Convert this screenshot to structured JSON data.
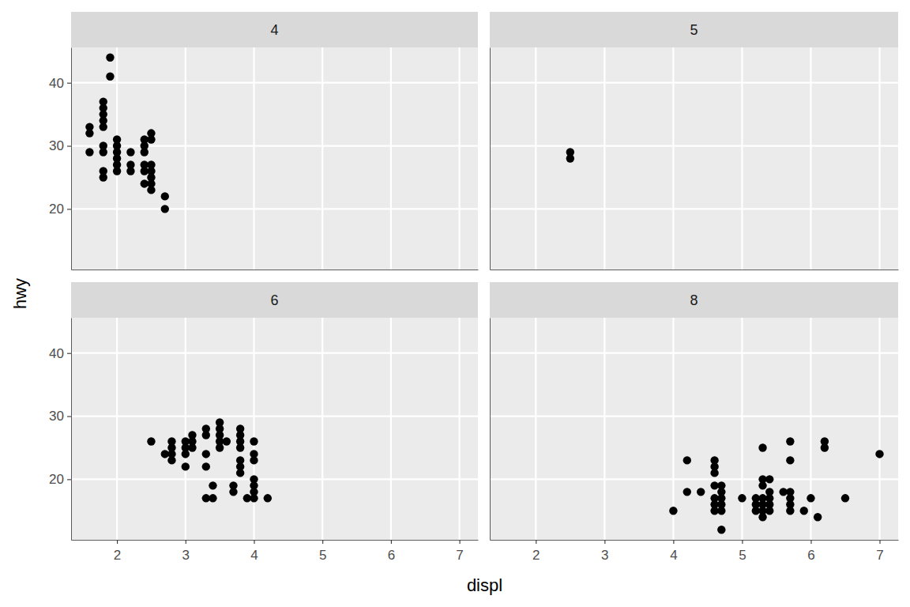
{
  "chart_data": {
    "type": "scatter",
    "x_label": "displ",
    "y_label": "hwy",
    "xlim": [
      1.33,
      7.27
    ],
    "ylim": [
      10.4,
      45.6
    ],
    "xticks": [
      2,
      3,
      4,
      5,
      6,
      7
    ],
    "yticks": [
      20,
      30,
      40
    ],
    "grid": true,
    "color": "#000000",
    "marker": "circle",
    "series": [
      {
        "name": "4",
        "x": [
          1.6,
          1.6,
          1.6,
          1.8,
          1.8,
          1.8,
          1.8,
          1.8,
          1.8,
          1.8,
          1.8,
          1.8,
          1.9,
          1.9,
          2.0,
          2.0,
          2.0,
          2.0,
          2.0,
          2.0,
          2.2,
          2.2,
          2.2,
          2.4,
          2.4,
          2.4,
          2.4,
          2.4,
          2.4,
          2.5,
          2.5,
          2.5,
          2.5,
          2.5,
          2.5,
          2.5,
          2.7,
          2.7
        ],
        "values": [
          33,
          32,
          29,
          37,
          36,
          35,
          34,
          33,
          30,
          29,
          26,
          25,
          44,
          41,
          31,
          30,
          29,
          28,
          27,
          26,
          29,
          27,
          26,
          31,
          30,
          29,
          27,
          26,
          24,
          32,
          31,
          27,
          26,
          25,
          24,
          23,
          22,
          20
        ]
      },
      {
        "name": "5",
        "x": [
          2.5,
          2.5
        ],
        "values": [
          29,
          28
        ]
      },
      {
        "name": "6",
        "x": [
          2.5,
          2.7,
          2.8,
          2.8,
          2.8,
          2.8,
          3.0,
          3.0,
          3.0,
          3.0,
          3.1,
          3.1,
          3.1,
          3.3,
          3.3,
          3.3,
          3.3,
          3.3,
          3.4,
          3.4,
          3.5,
          3.5,
          3.5,
          3.5,
          3.5,
          3.6,
          3.7,
          3.7,
          3.8,
          3.8,
          3.8,
          3.8,
          3.8,
          3.8,
          3.8,
          3.9,
          4.0,
          4.0,
          4.0,
          4.0,
          4.0,
          4.0,
          4.0,
          4.2
        ],
        "values": [
          26,
          24,
          26,
          25,
          24,
          23,
          26,
          25,
          24,
          22,
          27,
          26,
          25,
          28,
          27,
          24,
          22,
          17,
          19,
          17,
          29,
          28,
          27,
          26,
          25,
          26,
          19,
          18,
          28,
          27,
          26,
          25,
          23,
          22,
          21,
          17,
          26,
          24,
          23,
          20,
          19,
          18,
          17,
          17
        ]
      },
      {
        "name": "8",
        "x": [
          4.0,
          4.2,
          4.2,
          4.4,
          4.6,
          4.6,
          4.6,
          4.6,
          4.6,
          4.6,
          4.6,
          4.7,
          4.7,
          4.7,
          4.7,
          4.7,
          4.7,
          5.0,
          5.2,
          5.2,
          5.2,
          5.3,
          5.3,
          5.3,
          5.3,
          5.3,
          5.3,
          5.3,
          5.4,
          5.4,
          5.4,
          5.4,
          5.4,
          5.6,
          5.7,
          5.7,
          5.7,
          5.7,
          5.7,
          5.7,
          5.9,
          6.0,
          6.1,
          6.2,
          6.2,
          6.5,
          7.0
        ],
        "values": [
          15,
          23,
          18,
          18,
          23,
          22,
          21,
          19,
          17,
          16,
          15,
          19,
          18,
          17,
          16,
          15,
          12,
          17,
          17,
          16,
          15,
          25,
          20,
          19,
          17,
          16,
          15,
          14,
          20,
          18,
          17,
          16,
          15,
          18,
          26,
          23,
          18,
          17,
          16,
          15,
          15,
          17,
          14,
          26,
          25,
          17,
          24
        ]
      }
    ]
  }
}
